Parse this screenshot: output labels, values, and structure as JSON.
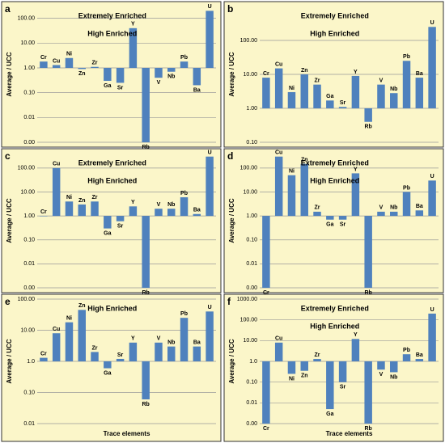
{
  "chart_data": [
    {
      "type": "bar",
      "panel_label": "a",
      "ylabel": "Average / UCC",
      "log_scale": true,
      "grid": true,
      "color": "#4f81bd",
      "annotations": [
        "Extremely Enriched",
        "High Enriched"
      ],
      "categories": [
        "Cr",
        "Cu",
        "Ni",
        "Zn",
        "Zr",
        "Ga",
        "Sr",
        "Y",
        "Rb",
        "V",
        "Nb",
        "Pb",
        "Ba",
        "U"
      ],
      "values": [
        1.8,
        1.3,
        2.5,
        0.9,
        1.1,
        0.3,
        0.25,
        40,
        0.001,
        0.4,
        0.7,
        1.8,
        0.2,
        200
      ],
      "ylim": [
        0.001,
        300
      ],
      "yticks": [
        {
          "value": 0.001,
          "label": "0.00"
        },
        0.01,
        {
          "value": 0.1,
          "label": "0.10"
        },
        {
          "value": 1,
          "label": "1.00"
        },
        {
          "value": 10,
          "label": "10.00"
        },
        {
          "value": 100,
          "label": "100.00"
        }
      ]
    },
    {
      "type": "bar",
      "panel_label": "b",
      "ylabel": "Average / UCC",
      "log_scale": true,
      "grid": true,
      "color": "#4f81bd",
      "annotations": [
        "Extremely Enriched",
        "High Enriched"
      ],
      "categories": [
        "Cr",
        "Cu",
        "Ni",
        "Zn",
        "Zr",
        "Ga",
        "Sr",
        "Y",
        "Rb",
        "V",
        "Nb",
        "Pb",
        "Ba",
        "U"
      ],
      "values": [
        8,
        15,
        3,
        10,
        5,
        1.7,
        1.1,
        9,
        0.4,
        5,
        2.8,
        25,
        8,
        250
      ],
      "ylim": [
        0.1,
        1000
      ],
      "yticks": [
        {
          "value": 0.1,
          "label": "0.10"
        },
        {
          "value": 1,
          "label": "1.00"
        },
        {
          "value": 10,
          "label": "10.00"
        },
        {
          "value": 100,
          "label": "100.00"
        }
      ]
    },
    {
      "type": "bar",
      "panel_label": "c",
      "ylabel": "Average / UCC",
      "log_scale": true,
      "grid": true,
      "color": "#4f81bd",
      "annotations": [
        "Extremely Enriched",
        "High Enriched"
      ],
      "categories": [
        "Cr",
        "Cu",
        "Ni",
        "Zn",
        "Zr",
        "Ga",
        "Sr",
        "Y",
        "Rb",
        "V",
        "Nb",
        "Pb",
        "Ba",
        "U"
      ],
      "values": [
        1,
        100,
        4,
        3,
        4,
        0.3,
        0.6,
        2.5,
        0.001,
        2,
        2,
        6,
        1.2,
        300
      ],
      "ylim": [
        0.001,
        400
      ],
      "yticks": [
        {
          "value": 0.001,
          "label": "0.00"
        },
        0.01,
        {
          "value": 0.1,
          "label": "0.10"
        },
        {
          "value": 1,
          "label": "1.00"
        },
        {
          "value": 10,
          "label": "10.00"
        },
        {
          "value": 100,
          "label": "100.00"
        }
      ]
    },
    {
      "type": "bar",
      "panel_label": "d",
      "ylabel": "Average / UCC",
      "log_scale": true,
      "grid": true,
      "color": "#4f81bd",
      "annotations": [
        "Extremely Enriched",
        "High Enriched"
      ],
      "categories": [
        "Cr",
        "Cu",
        "Ni",
        "Zn",
        "Zr",
        "Ga",
        "Sr",
        "Y",
        "Rb",
        "V",
        "Nb",
        "Pb",
        "Ba",
        "U"
      ],
      "values": [
        0.001,
        300,
        50,
        150,
        1.5,
        0.7,
        0.7,
        60,
        0.001,
        1.5,
        1.5,
        10,
        1.7,
        30
      ],
      "ylim": [
        0.001,
        400
      ],
      "yticks": [
        {
          "value": 0.001,
          "label": "0.00"
        },
        0.01,
        {
          "value": 0.1,
          "label": "0.10"
        },
        {
          "value": 1,
          "label": "1.00"
        },
        {
          "value": 10,
          "label": "10.00"
        },
        {
          "value": 100,
          "label": "100.00"
        }
      ]
    },
    {
      "type": "bar",
      "panel_label": "e",
      "ylabel": "Average / UCC",
      "xlabel": "Trace elements",
      "log_scale": true,
      "grid": true,
      "color": "#4f81bd",
      "annotations": [
        "High Enriched"
      ],
      "categories": [
        "Cr",
        "Cu",
        "Ni",
        "Zn",
        "Zr",
        "Ga",
        "Sr",
        "Y",
        "Rb",
        "V",
        "Nb",
        "Pb",
        "Ba",
        "U"
      ],
      "values": [
        1.3,
        8,
        18,
        45,
        2,
        0.6,
        1.2,
        4,
        0.06,
        4,
        3,
        25,
        3,
        40
      ],
      "ylim": [
        0.01,
        100
      ],
      "yticks": [
        0.01,
        {
          "value": 0.1,
          "label": "0.10"
        },
        {
          "value": 1,
          "label": "1.0"
        },
        {
          "value": 10,
          "label": "10.00"
        },
        {
          "value": 100,
          "label": "100.00"
        }
      ]
    },
    {
      "type": "bar",
      "panel_label": "f",
      "ylabel": "Average / UCC",
      "xlabel": "Trace elements",
      "log_scale": true,
      "grid": true,
      "color": "#4f81bd",
      "annotations": [
        "Extremely Enriched",
        "High Enriched"
      ],
      "categories": [
        "Cr",
        "Cu",
        "Ni",
        "Zn",
        "Zr",
        "Ga",
        "Sr",
        "Y",
        "Rb",
        "V",
        "Nb",
        "Pb",
        "Ba",
        "U"
      ],
      "values": [
        0.001,
        8,
        0.25,
        0.35,
        1.3,
        0.005,
        0.1,
        12,
        0.001,
        0.4,
        0.3,
        2.2,
        1.3,
        200
      ],
      "ylim": [
        0.001,
        1000
      ],
      "yticks": [
        {
          "value": 0.001,
          "label": "0.00"
        },
        0.01,
        {
          "value": 0.1,
          "label": "0.10"
        },
        {
          "value": 1,
          "label": "1.0"
        },
        {
          "value": 10,
          "label": "10.00"
        },
        {
          "value": 100,
          "label": "100.00"
        },
        {
          "value": 1000,
          "label": "1000.00"
        }
      ]
    }
  ]
}
